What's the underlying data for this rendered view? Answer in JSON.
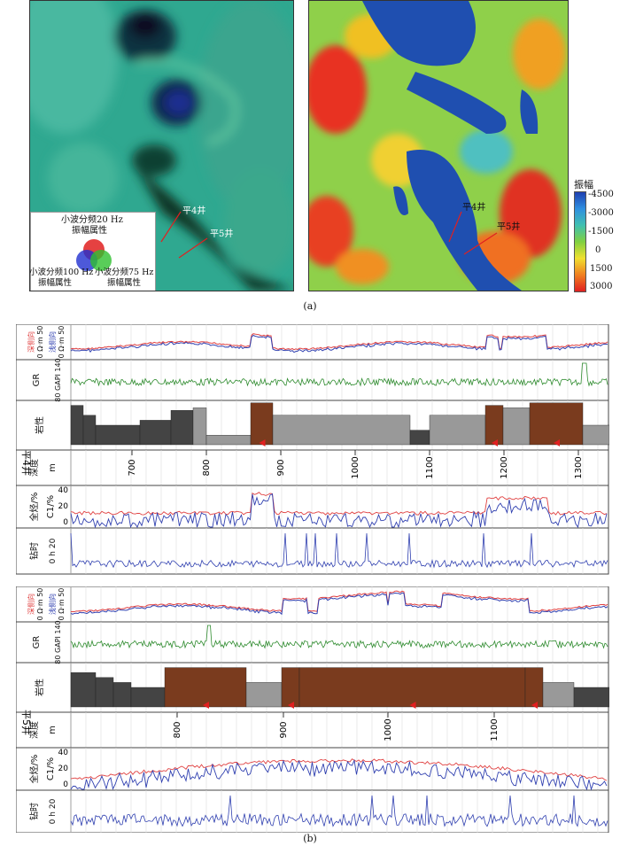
{
  "figure_a": {
    "rgb_legend": {
      "top": "小波分频20 Hz",
      "top2": "振幅属性",
      "left": "小波分频100 Hz",
      "left2": "振幅属性",
      "right": "小波分频75 Hz",
      "right2": "振幅属性"
    },
    "wells": [
      "平4井",
      "平5井"
    ],
    "colorbar_title": "振幅",
    "colorbar_ticks": [
      "-4500",
      "-3000",
      "-1500",
      "0",
      "1500",
      "3000"
    ],
    "caption": "(a)"
  },
  "figure_b": {
    "caption": "(b)",
    "wells": [
      {
        "name": "平4井",
        "track_labels": {
          "res_deep": "深侧向",
          "res_shallow": "浅侧向",
          "res_unit": "0 Ω·m 50",
          "gr": "GR",
          "gr_unit": "80 GAPI 140",
          "litho": "岩性",
          "depth": "深度",
          "depth_unit": "m",
          "gas": "全烃/%",
          "gas2": "C1/%",
          "drill": "钻时",
          "drill_unit": "0 h 20"
        },
        "gas_scale": [
          "40",
          "20",
          "0"
        ],
        "depth_ticks": [
          "700",
          "800",
          "900",
          "1000",
          "1100",
          "1200",
          "1300"
        ]
      },
      {
        "name": "平5井",
        "track_labels": {
          "res_deep": "深侧向",
          "res_shallow": "浅侧向",
          "res_unit": "0 Ω·m 50",
          "gr": "GR",
          "gr_unit": "80 GAPI 140",
          "litho": "岩性",
          "depth": "深度",
          "depth_unit": "m",
          "gas": "全烃/%",
          "gas2": "C1/%",
          "drill": "钻时",
          "drill_unit": "0 h 20"
        },
        "gas_scale": [
          "40",
          "20",
          "0"
        ],
        "depth_ticks": [
          "800",
          "900",
          "1000",
          "1100"
        ]
      }
    ]
  },
  "colors": {
    "deep": "#e04040",
    "shallow": "#3040b0",
    "gr": "#2e8b2e",
    "shale": "#444444",
    "sand": "#999999",
    "gas_layer": "#7a3b1e",
    "gas_layer2": "#8b5a2b",
    "marker": "#e02020"
  }
}
